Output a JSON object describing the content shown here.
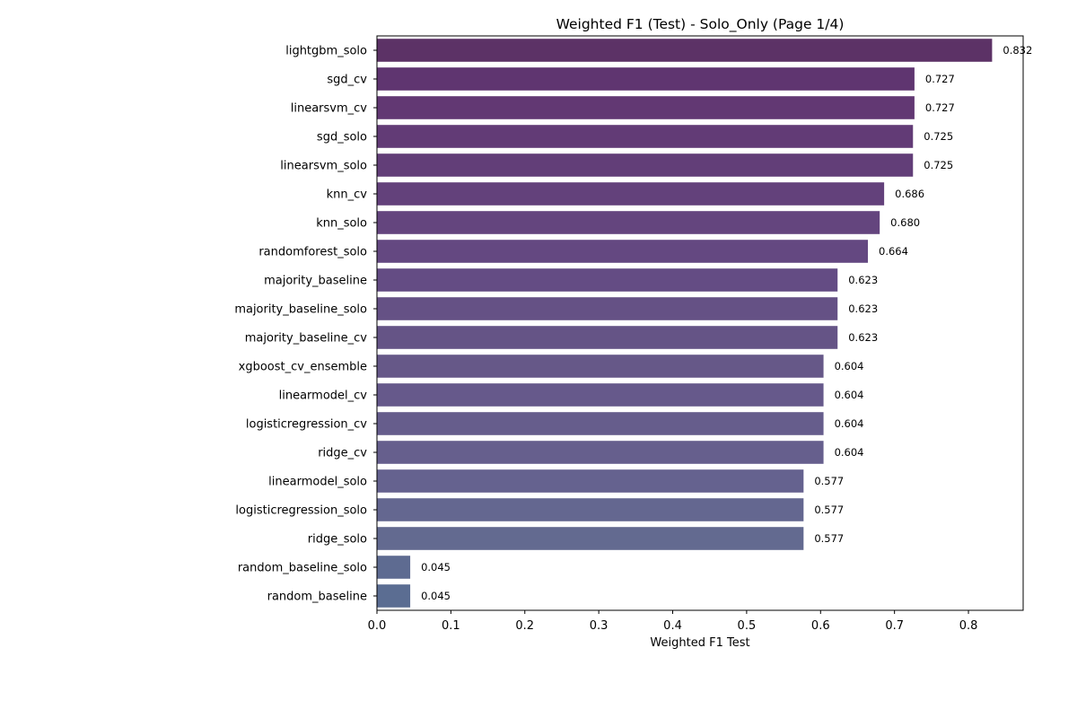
{
  "chart_data": {
    "type": "bar",
    "orientation": "horizontal",
    "title": "Weighted F1 (Test) - Solo_Only (Page 1/4)",
    "xlabel": "Weighted F1 Test",
    "ylabel": "",
    "xlim": [
      0,
      0.874
    ],
    "xticks": [
      0.0,
      0.1,
      0.2,
      0.3,
      0.4,
      0.5,
      0.6,
      0.7,
      0.8
    ],
    "xtick_labels": [
      "0.0",
      "0.1",
      "0.2",
      "0.3",
      "0.4",
      "0.5",
      "0.6",
      "0.7",
      "0.8"
    ],
    "grid": false,
    "categories": [
      "lightgbm_solo",
      "sgd_cv",
      "linearsvm_cv",
      "sgd_solo",
      "linearsvm_solo",
      "knn_cv",
      "knn_solo",
      "randomforest_solo",
      "majority_baseline",
      "majority_baseline_solo",
      "majority_baseline_cv",
      "xgboost_cv_ensemble",
      "linearmodel_cv",
      "logisticregression_cv",
      "ridge_cv",
      "linearmodel_solo",
      "logisticregression_solo",
      "ridge_solo",
      "random_baseline_solo",
      "random_baseline"
    ],
    "values": [
      0.832,
      0.727,
      0.727,
      0.725,
      0.725,
      0.686,
      0.68,
      0.664,
      0.623,
      0.623,
      0.623,
      0.604,
      0.604,
      0.604,
      0.604,
      0.577,
      0.577,
      0.577,
      0.045,
      0.045
    ],
    "value_labels": [
      "0.832",
      "0.727",
      "0.727",
      "0.725",
      "0.725",
      "0.686",
      "0.680",
      "0.664",
      "0.623",
      "0.623",
      "0.623",
      "0.604",
      "0.604",
      "0.604",
      "0.604",
      "0.577",
      "0.577",
      "0.577",
      "0.045",
      "0.045"
    ],
    "colors": [
      "#5c3266",
      "#5f3570",
      "#623873",
      "#623b76",
      "#623e78",
      "#63417b",
      "#64457e",
      "#644881",
      "#644c84",
      "#655185",
      "#655486",
      "#665888",
      "#66598b",
      "#665d8c",
      "#665f8d",
      "#65628f",
      "#646790",
      "#636a90",
      "#5e6b91",
      "#5b6d92"
    ]
  }
}
